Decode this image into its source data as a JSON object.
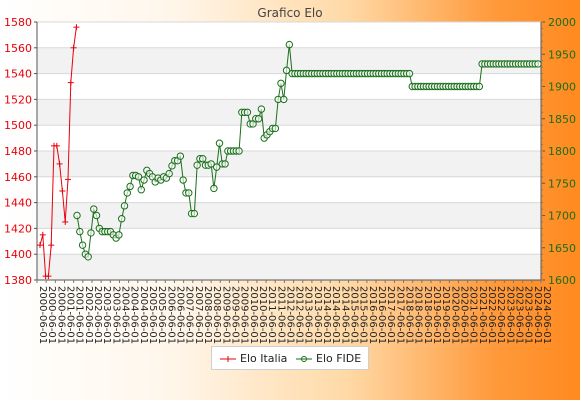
{
  "chart_data": {
    "type": "line",
    "title": "Grafico Elo",
    "x_tick_label_pattern": "2000–2024 (dates, vertical, overlapping)",
    "y_left": {
      "min": 1380,
      "max": 1580,
      "step": 20,
      "ticks": [
        1380,
        1400,
        1420,
        1440,
        1460,
        1480,
        1500,
        1520,
        1540,
        1560,
        1580
      ]
    },
    "y_right": {
      "min": 1600,
      "max": 2000,
      "step": 50,
      "ticks": [
        1600,
        1650,
        1700,
        1750,
        1800,
        1850,
        1900,
        1950,
        2000
      ]
    },
    "grid": true,
    "legend_position": "bottom-center",
    "series": [
      {
        "name": "Elo Italia",
        "axis": "left",
        "color": "#e8000b",
        "marker": "plus",
        "values": [
          1407,
          1415,
          1383,
          1383,
          1407,
          1484,
          1484,
          1470,
          1449,
          1425,
          1458,
          1533,
          1560,
          1576
        ]
      },
      {
        "name": "Elo FIDE",
        "axis": "right",
        "color": "#1a6f1a",
        "marker": "circle",
        "values": [
          1700,
          1675,
          1654,
          1640,
          1636,
          1673,
          1710,
          1700,
          1680,
          1675,
          1675,
          1675,
          1675,
          1670,
          1665,
          1670,
          1695,
          1715,
          1735,
          1745,
          1762,
          1762,
          1760,
          1740,
          1755,
          1770,
          1765,
          1760,
          1752,
          1758,
          1755,
          1760,
          1758,
          1765,
          1777,
          1785,
          1785,
          1792,
          1755,
          1735,
          1735,
          1703,
          1703,
          1778,
          1788,
          1788,
          1778,
          1778,
          1780,
          1742,
          1775,
          1812,
          1780,
          1780,
          1800,
          1800,
          1800,
          1800,
          1800,
          1860,
          1860,
          1860,
          1842,
          1842,
          1850,
          1850,
          1865,
          1820,
          1825,
          1830,
          1835,
          1835,
          1880,
          1905,
          1880,
          1925,
          1965,
          1920,
          1920,
          1920,
          1920,
          1920,
          1920,
          1920,
          1920,
          1920,
          1920,
          1920,
          1920,
          1920,
          1920,
          1920,
          1920,
          1920,
          1920,
          1920,
          1920,
          1920,
          1920,
          1920,
          1920,
          1920,
          1920,
          1920,
          1920,
          1920,
          1920,
          1920,
          1920,
          1920,
          1920,
          1920,
          1920,
          1920,
          1920,
          1920,
          1920,
          1920,
          1920,
          1920,
          1900,
          1900,
          1900,
          1900,
          1900,
          1900,
          1900,
          1900,
          1900,
          1900,
          1900,
          1900,
          1900,
          1900,
          1900,
          1900,
          1900,
          1900,
          1900,
          1900,
          1900,
          1900,
          1900,
          1900,
          1900,
          1935,
          1935,
          1935,
          1935,
          1935,
          1935,
          1935,
          1935,
          1935,
          1935,
          1935,
          1935,
          1935,
          1935,
          1935,
          1935,
          1935,
          1935,
          1935,
          1935,
          1935
        ]
      }
    ]
  }
}
